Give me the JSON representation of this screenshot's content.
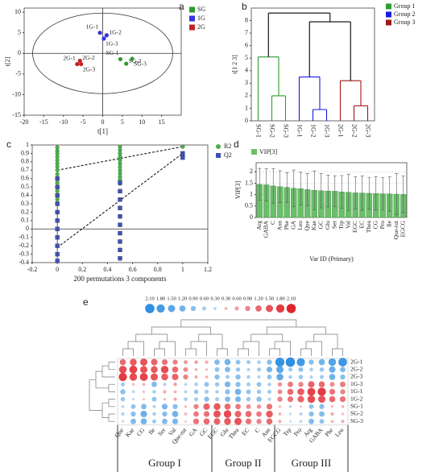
{
  "chart_data": [
    {
      "type": "scatter",
      "panel": "a",
      "xlabel": "t[1]",
      "ylabel": "t[2]",
      "xlim": [
        -20,
        20
      ],
      "ylim": [
        -15,
        11
      ],
      "xticks": [
        -20,
        -15,
        -10,
        -5,
        0,
        5,
        10,
        15
      ],
      "yticks": [
        -15,
        -10,
        -5,
        0,
        5,
        10
      ],
      "legend": "right",
      "series": [
        {
          "name": "SG",
          "color": "#2e9a2e",
          "x": [
            4.5,
            6,
            7.5
          ],
          "y": [
            -1.4,
            -2.5,
            -1.3
          ],
          "labels": [
            "SG-1",
            "SG-2",
            "SG-3"
          ]
        },
        {
          "name": "1G",
          "color": "#3535e0",
          "x": [
            -0.7,
            1,
            0.3
          ],
          "y": [
            5.0,
            4.4,
            3.6
          ],
          "labels": [
            "1G-1",
            "1G-2",
            "1G-3"
          ]
        },
        {
          "name": "2G",
          "color": "#c42222",
          "x": [
            -6.5,
            -5.8,
            -5.5
          ],
          "y": [
            -2.6,
            -1.8,
            -2.6
          ],
          "labels": [
            "2G-1",
            "2G-2",
            "2G-3"
          ]
        }
      ]
    },
    {
      "type": "dendrogram",
      "panel": "b",
      "ylabel": "t[1 2 3]",
      "ylim": [
        0,
        9
      ],
      "yticks": [
        0,
        1,
        2,
        3,
        4,
        5,
        6,
        7,
        8
      ],
      "legend": "right",
      "groups": [
        {
          "name": "Group 1",
          "color": "#2e9e2e"
        },
        {
          "name": "Group 2",
          "color": "#1a1adf"
        },
        {
          "name": "Group 3",
          "color": "#a01818"
        }
      ],
      "tree": {
        "height": 8.6,
        "children": [
          {
            "height": 5.1,
            "group": 0,
            "children": [
              {
                "leaf": "SG-1"
              },
              {
                "height": 2.0,
                "children": [
                  {
                    "leaf": "SG-2"
                  },
                  {
                    "leaf": "SG-3"
                  }
                ]
              }
            ]
          },
          {
            "height": 7.9,
            "children": [
              {
                "height": 3.5,
                "group": 1,
                "children": [
                  {
                    "leaf": "1G-1"
                  },
                  {
                    "height": 0.9,
                    "children": [
                      {
                        "leaf": "1G-2"
                      },
                      {
                        "leaf": "1G-3"
                      }
                    ]
                  }
                ]
              },
              {
                "height": 3.2,
                "group": 2,
                "children": [
                  {
                    "leaf": "2G-1"
                  },
                  {
                    "height": 1.2,
                    "children": [
                      {
                        "leaf": "2G-2"
                      },
                      {
                        "leaf": "2G-3"
                      }
                    ]
                  }
                ]
              }
            ]
          }
        ]
      }
    },
    {
      "type": "scatter",
      "panel": "c",
      "xlabel": "200 permutations 3 components",
      "xlim": [
        -0.2,
        1.2
      ],
      "ylim": [
        -0.4,
        1
      ],
      "xticks": [
        -0.2,
        0,
        0.2,
        0.4,
        0.6,
        0.8,
        1,
        1.2
      ],
      "yticks": [
        -0.4,
        -0.3,
        -0.2,
        -0.1,
        0,
        0.1,
        0.2,
        0.3,
        0.4,
        0.5,
        0.6,
        0.7,
        0.8,
        0.9,
        1
      ],
      "legend": "right",
      "series": [
        {
          "name": "R2",
          "color": "#4caf50",
          "marker": "circle",
          "x": [
            0,
            0,
            0,
            0,
            0,
            0,
            0,
            0,
            0,
            0,
            0,
            0,
            0,
            0,
            0,
            0.5,
            0.5,
            0.5,
            0.5,
            0.5,
            0.5,
            0.5,
            0.5,
            0.5,
            0.5,
            0.5,
            0.5,
            1
          ],
          "y": [
            0.97,
            0.93,
            0.9,
            0.86,
            0.82,
            0.78,
            0.74,
            0.7,
            0.65,
            0.6,
            0.55,
            0.5,
            0.45,
            0.4,
            0.35,
            0.98,
            0.94,
            0.9,
            0.86,
            0.82,
            0.78,
            0.74,
            0.7,
            0.66,
            0.62,
            0.58,
            0.54,
            0.98
          ]
        },
        {
          "name": "Q2",
          "color": "#3f51b5",
          "marker": "square",
          "x": [
            0,
            0,
            0,
            0,
            0,
            0,
            0,
            0,
            0,
            0,
            0,
            0.5,
            0.5,
            0.5,
            0.5,
            0.5,
            0.5,
            0.5,
            0.5,
            0.5,
            0.5,
            1,
            1
          ],
          "y": [
            0.6,
            0.5,
            0.4,
            0.3,
            0.2,
            0.1,
            0,
            -0.1,
            -0.2,
            -0.3,
            -0.38,
            0.55,
            0.45,
            0.35,
            0.25,
            0.15,
            0.05,
            -0.05,
            -0.15,
            -0.25,
            -0.35,
            0.9,
            0.85
          ]
        }
      ],
      "lines": [
        {
          "x": [
            0,
            1
          ],
          "y": [
            0.7,
            0.98
          ]
        },
        {
          "x": [
            0,
            1
          ],
          "y": [
            -0.22,
            0.9
          ]
        }
      ]
    },
    {
      "type": "bar",
      "panel": "d",
      "xlabel": "Var ID (Primary)",
      "ylabel": "VIP[3]",
      "legend": "top-left",
      "grid": true,
      "ylim": [
        0,
        2.4
      ],
      "yticks": [
        0,
        0.5,
        1,
        1.5,
        2
      ],
      "series": [
        {
          "name": "VIP[3]",
          "color": "#6abf69",
          "values": [
            1.45,
            1.43,
            1.38,
            1.35,
            1.32,
            1.28,
            1.26,
            1.22,
            1.19,
            1.17,
            1.16,
            1.15,
            1.12,
            1.1,
            1.08,
            1.07,
            1.06,
            1.05,
            1.04,
            1.03,
            1.02,
            1.01
          ],
          "errors": [
            0.7,
            0.7,
            0.75,
            0.7,
            0.65,
            0.8,
            0.72,
            0.7,
            0.85,
            0.75,
            0.7,
            0.68,
            0.72,
            0.8,
            0.7,
            0.75,
            0.7,
            0.73,
            0.7,
            0.75,
            0.9,
            0.8
          ]
        }
      ],
      "categories": [
        "Arg",
        "GABA",
        "C",
        "Asn",
        "Phe",
        "GA",
        "Leu",
        "Que",
        "Kae",
        "GC",
        "Glu",
        "Ser",
        "Trp",
        "Val",
        "EGC",
        "EC",
        "Thea",
        "CG",
        "Pro",
        "Ile",
        "Que-rut",
        "EGCG"
      ]
    },
    {
      "type": "bubble_heatmap",
      "panel": "e",
      "low_color": "#2f8fe0",
      "high_color": "#e0242b",
      "scale_ticks": [
        {
          "value": -2.1,
          "label": "2.10"
        },
        {
          "value": -1.8,
          "label": "1.80"
        },
        {
          "value": -1.5,
          "label": "1.50"
        },
        {
          "value": -1.2,
          "label": "1.20"
        },
        {
          "value": -0.9,
          "label": "0.90"
        },
        {
          "value": -0.6,
          "label": "0.60"
        },
        {
          "value": -0.3,
          "label": "0.30"
        },
        {
          "value": 0.3,
          "label": "0.30"
        },
        {
          "value": 0.6,
          "label": "0.60"
        },
        {
          "value": 0.9,
          "label": "0.90"
        },
        {
          "value": 1.2,
          "label": "1.20"
        },
        {
          "value": 1.5,
          "label": "1.50"
        },
        {
          "value": 1.8,
          "label": "1.80"
        },
        {
          "value": 2.1,
          "label": "2.10"
        }
      ],
      "rows": [
        "2G-1",
        "2G-2",
        "2G-3",
        "1G-3",
        "1G-1",
        "1G-2",
        "SG-1",
        "SG-2",
        "SG-3"
      ],
      "groups": [
        {
          "name": "Group I",
          "columns": [
            "Que",
            "Kae",
            "CG",
            "Ile",
            "Ser",
            "Val",
            "Que-rut",
            "GA",
            "GC"
          ]
        },
        {
          "name": "Group II",
          "columns": [
            "EGC",
            "Glu",
            "Thea",
            "EC",
            "C",
            "Asn"
          ]
        },
        {
          "name": "Group III",
          "columns": [
            "EGCG",
            "Trp",
            "Pro",
            "Arg",
            "GABA",
            "Phe",
            "Leu"
          ]
        }
      ],
      "values": [
        [
          1.2,
          1.4,
          1.5,
          1.3,
          1.1,
          0.9,
          0.6,
          0.5,
          0.4,
          -1.0,
          -1.2,
          -0.8,
          -0.6,
          -0.5,
          -0.9,
          -2.0,
          -2.1,
          -1.8,
          -0.9,
          -1.2,
          -1.6,
          -1.9
        ],
        [
          1.6,
          1.7,
          1.5,
          1.4,
          1.6,
          1.2,
          0.8,
          0.3,
          0.2,
          -0.8,
          -1.0,
          -0.7,
          -0.4,
          -0.6,
          -1.1,
          -1.5,
          -0.6,
          -0.8,
          -0.5,
          -0.7,
          -1.3,
          -1.0
        ],
        [
          1.8,
          1.6,
          1.7,
          1.5,
          1.4,
          1.3,
          0.9,
          0.4,
          0.3,
          -0.9,
          -0.6,
          -0.9,
          -0.5,
          -0.4,
          -0.8,
          -1.4,
          -0.5,
          -0.7,
          -0.4,
          -0.6,
          -1.2,
          -0.9
        ],
        [
          -0.6,
          0.2,
          0.3,
          -1.0,
          -0.4,
          0.5,
          -0.3,
          -0.5,
          -0.8,
          -0.7,
          -1.1,
          -0.9,
          -0.6,
          -0.8,
          -0.5,
          0.7,
          1.0,
          0.9,
          1.3,
          1.2,
          0.8,
          1.0
        ],
        [
          -0.9,
          -0.3,
          0.2,
          -0.5,
          0.4,
          0.3,
          -0.4,
          -0.7,
          -0.6,
          -0.5,
          -0.9,
          -1.2,
          -0.8,
          -0.7,
          -0.6,
          0.8,
          1.2,
          1.4,
          1.7,
          1.8,
          1.1,
          0.9
        ],
        [
          -0.7,
          -0.2,
          0.1,
          -0.8,
          0.2,
          0.4,
          -0.5,
          -0.6,
          -0.9,
          -0.6,
          -1.0,
          -1.1,
          -0.7,
          -0.9,
          -0.4,
          0.9,
          1.1,
          1.3,
          1.6,
          1.5,
          1.2,
          1.1
        ],
        [
          -0.3,
          -0.8,
          -1.0,
          -0.4,
          -1.1,
          -0.9,
          0.2,
          0.9,
          1.3,
          1.4,
          1.2,
          1.0,
          0.8,
          0.7,
          1.1,
          0.2,
          -0.3,
          0.1,
          -0.8,
          -0.9,
          0.2,
          0.3
        ],
        [
          -0.4,
          -0.9,
          -1.3,
          -0.5,
          -0.9,
          -1.2,
          0.3,
          1.0,
          1.1,
          1.5,
          1.6,
          1.3,
          1.2,
          1.0,
          1.4,
          0.3,
          -0.2,
          -0.4,
          -0.9,
          -1.0,
          0.4,
          0.2
        ],
        [
          -0.2,
          -1.0,
          -1.2,
          -0.6,
          -1.0,
          -1.1,
          0.1,
          1.1,
          1.2,
          1.3,
          1.4,
          1.5,
          1.1,
          0.9,
          1.2,
          0.4,
          -0.1,
          -0.3,
          -1.0,
          -0.8,
          0.3,
          0.4
        ]
      ]
    }
  ]
}
